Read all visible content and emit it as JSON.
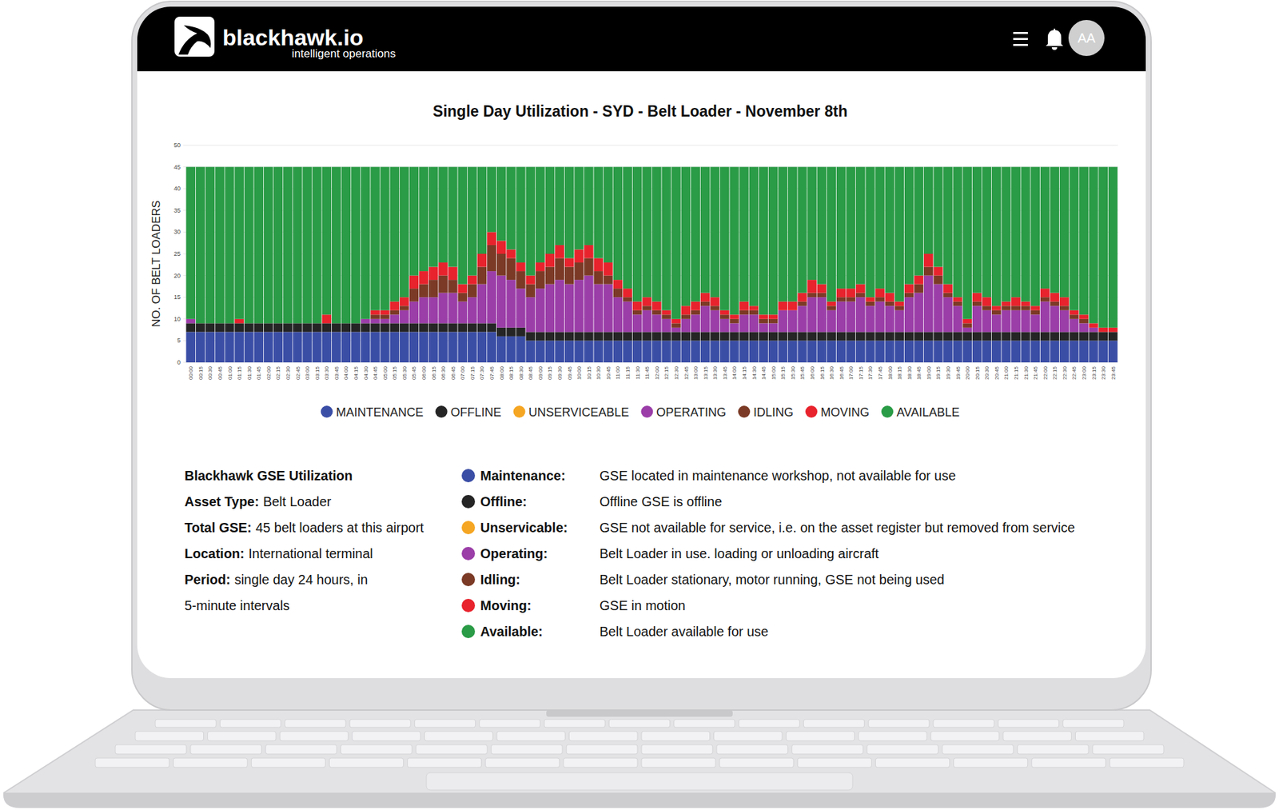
{
  "header": {
    "brand": "blackhawk.io",
    "tagline": "intelligent operations",
    "avatar": "AA"
  },
  "chart_data": {
    "type": "bar",
    "stacked": true,
    "title": "Single Day Utilization - SYD - Belt Loader - November 8th",
    "ylabel": "NO. OF BELT LOADERS",
    "categories": [
      "00:00",
      "00:15",
      "00:30",
      "00:45",
      "01:00",
      "01:15",
      "01:30",
      "01:45",
      "02:00",
      "02:15",
      "02:30",
      "02:45",
      "03:00",
      "03:15",
      "03:30",
      "03:45",
      "04:00",
      "04:15",
      "04:30",
      "04:45",
      "05:00",
      "05:15",
      "05:30",
      "05:45",
      "06:00",
      "06:15",
      "06:30",
      "06:45",
      "07:00",
      "07:15",
      "07:30",
      "07:45",
      "08:00",
      "08:15",
      "08:30",
      "08:45",
      "09:00",
      "09:15",
      "09:30",
      "09:45",
      "10:00",
      "10:15",
      "10:30",
      "10:45",
      "11:00",
      "11:15",
      "11:30",
      "11:45",
      "12:00",
      "12:15",
      "12:30",
      "12:45",
      "13:00",
      "13:15",
      "13:30",
      "13:45",
      "14:00",
      "14:15",
      "14:30",
      "14:45",
      "15:00",
      "15:15",
      "15:30",
      "15:45",
      "16:00",
      "16:15",
      "16:30",
      "16:45",
      "17:00",
      "17:15",
      "17:30",
      "17:45",
      "18:00",
      "18:15",
      "18:30",
      "18:45",
      "19:00",
      "19:15",
      "19:30",
      "19:45",
      "20:00",
      "20:15",
      "20:30",
      "20:45",
      "21:00",
      "21:15",
      "21:30",
      "21:45",
      "22:00",
      "22:15",
      "22:30",
      "22:45",
      "23:00",
      "23:15",
      "23:30",
      "23:45"
    ],
    "series": [
      {
        "name": "MAINTENANCE",
        "color": "#3b4ea6",
        "values": [
          7,
          7,
          7,
          7,
          7,
          7,
          7,
          7,
          7,
          7,
          7,
          7,
          7,
          7,
          7,
          7,
          7,
          7,
          7,
          7,
          7,
          7,
          7,
          7,
          7,
          7,
          7,
          7,
          7,
          7,
          7,
          7,
          6,
          6,
          6,
          5,
          5,
          5,
          5,
          5,
          5,
          5,
          5,
          5,
          5,
          5,
          5,
          5,
          5,
          5,
          5,
          5,
          5,
          5,
          5,
          5,
          5,
          5,
          5,
          5,
          5,
          5,
          5,
          5,
          5,
          5,
          5,
          5,
          5,
          5,
          5,
          5,
          5,
          5,
          5,
          5,
          5,
          5,
          5,
          5,
          5,
          5,
          5,
          5,
          5,
          5,
          5,
          5,
          5,
          5,
          5,
          5,
          5,
          5,
          5,
          5
        ]
      },
      {
        "name": "OFFLINE",
        "color": "#252525",
        "values": [
          2,
          2,
          2,
          2,
          2,
          2,
          2,
          2,
          2,
          2,
          2,
          2,
          2,
          2,
          2,
          2,
          2,
          2,
          2,
          2,
          2,
          2,
          2,
          2,
          2,
          2,
          2,
          2,
          2,
          2,
          2,
          2,
          2,
          2,
          2,
          2,
          2,
          2,
          2,
          2,
          2,
          2,
          2,
          2,
          2,
          2,
          2,
          2,
          2,
          2,
          2,
          2,
          2,
          2,
          2,
          2,
          2,
          2,
          2,
          2,
          2,
          2,
          2,
          2,
          2,
          2,
          2,
          2,
          2,
          2,
          2,
          2,
          2,
          2,
          2,
          2,
          2,
          2,
          2,
          2,
          2,
          2,
          2,
          2,
          2,
          2,
          2,
          2,
          2,
          2,
          2,
          2,
          2,
          2,
          2,
          2
        ]
      },
      {
        "name": "UNSERVICEABLE",
        "color": "#f5a623",
        "values": [
          0,
          0,
          0,
          0,
          0,
          0,
          0,
          0,
          0,
          0,
          0,
          0,
          0,
          0,
          0,
          0,
          0,
          0,
          0,
          0,
          0,
          0,
          0,
          0,
          0,
          0,
          0,
          0,
          0,
          0,
          0,
          0,
          0,
          0,
          0,
          0,
          0,
          0,
          0,
          0,
          0,
          0,
          0,
          0,
          0,
          0,
          0,
          0,
          0,
          0,
          0,
          0,
          0,
          0,
          0,
          0,
          0,
          0,
          0,
          0,
          0,
          0,
          0,
          0,
          0,
          0,
          0,
          0,
          0,
          0,
          0,
          0,
          0,
          0,
          0,
          0,
          0,
          0,
          0,
          0,
          0,
          0,
          0,
          0,
          0,
          0,
          0,
          0,
          0,
          0,
          0,
          0,
          0,
          0,
          0,
          0
        ]
      },
      {
        "name": "OPERATING",
        "color": "#9b3ea8",
        "values": [
          1,
          0,
          0,
          0,
          0,
          0,
          0,
          0,
          0,
          0,
          0,
          0,
          0,
          0,
          0,
          0,
          0,
          0,
          1,
          1,
          1,
          2,
          3,
          5,
          6,
          6,
          7,
          7,
          5,
          6,
          9,
          12,
          12,
          11,
          9,
          8,
          10,
          11,
          12,
          11,
          12,
          13,
          11,
          11,
          8,
          7,
          4,
          5,
          4,
          3,
          1,
          3,
          4,
          6,
          5,
          3,
          2,
          4,
          4,
          2,
          2,
          5,
          5,
          6,
          8,
          8,
          5,
          7,
          7,
          8,
          6,
          7,
          6,
          5,
          8,
          9,
          13,
          11,
          8,
          6,
          1,
          6,
          5,
          4,
          5,
          5,
          5,
          4,
          7,
          6,
          5,
          3,
          2,
          1,
          0,
          0
        ]
      },
      {
        "name": "IDLING",
        "color": "#7b3a26",
        "values": [
          0,
          0,
          0,
          0,
          0,
          0,
          0,
          0,
          0,
          0,
          0,
          0,
          0,
          0,
          0,
          0,
          0,
          0,
          0,
          1,
          1,
          1,
          1,
          3,
          3,
          4,
          4,
          3,
          2,
          3,
          4,
          6,
          5,
          5,
          4,
          3,
          4,
          4,
          5,
          4,
          4,
          4,
          3,
          2,
          2,
          1,
          1,
          1,
          1,
          1,
          1,
          1,
          1,
          1,
          1,
          1,
          1,
          1,
          1,
          1,
          1,
          0,
          0,
          1,
          1,
          1,
          1,
          1,
          1,
          1,
          1,
          1,
          1,
          1,
          1,
          2,
          2,
          2,
          1,
          1,
          1,
          1,
          1,
          1,
          1,
          1,
          1,
          1,
          1,
          1,
          1,
          1,
          1,
          0,
          0,
          0
        ]
      },
      {
        "name": "MOVING",
        "color": "#e8232d",
        "values": [
          0,
          0,
          0,
          0,
          0,
          1,
          0,
          0,
          0,
          0,
          0,
          0,
          0,
          0,
          2,
          0,
          0,
          0,
          0,
          1,
          1,
          2,
          2,
          3,
          3,
          3,
          3,
          3,
          2,
          2,
          3,
          3,
          3,
          2,
          2,
          2,
          2,
          3,
          3,
          2,
          3,
          3,
          3,
          3,
          2,
          2,
          2,
          2,
          2,
          1,
          1,
          2,
          2,
          2,
          2,
          1,
          1,
          2,
          1,
          1,
          1,
          2,
          2,
          2,
          3,
          2,
          1,
          2,
          2,
          2,
          1,
          2,
          2,
          1,
          2,
          2,
          3,
          2,
          2,
          1,
          1,
          2,
          2,
          1,
          1,
          2,
          1,
          1,
          2,
          2,
          2,
          1,
          1,
          1,
          1,
          1
        ]
      },
      {
        "name": "AVAILABLE",
        "color": "#2a9b46",
        "values": [
          35,
          36,
          36,
          36,
          36,
          35,
          36,
          36,
          36,
          36,
          36,
          36,
          36,
          36,
          34,
          36,
          36,
          36,
          35,
          33,
          33,
          31,
          30,
          25,
          24,
          23,
          22,
          23,
          27,
          25,
          20,
          15,
          17,
          19,
          22,
          25,
          22,
          20,
          18,
          21,
          19,
          18,
          21,
          22,
          26,
          28,
          31,
          30,
          31,
          33,
          35,
          32,
          31,
          29,
          30,
          33,
          34,
          31,
          32,
          34,
          34,
          31,
          31,
          29,
          26,
          27,
          31,
          28,
          28,
          27,
          30,
          28,
          29,
          31,
          27,
          25,
          20,
          23,
          27,
          30,
          35,
          29,
          30,
          32,
          31,
          30,
          31,
          32,
          28,
          29,
          30,
          33,
          34,
          36,
          37,
          37
        ]
      }
    ],
    "ylim": [
      0,
      50
    ],
    "yticks": [
      0,
      5,
      10,
      15,
      20,
      25,
      30,
      35,
      40,
      45,
      50
    ],
    "grid": true,
    "legend": "bottom"
  },
  "info": {
    "summary": [
      {
        "label": "Blackhawk GSE Utilization"
      },
      {
        "label": "Asset Type:",
        "text": "Belt Loader"
      },
      {
        "label": "Total GSE:",
        "text": "45 belt loaders at this airport"
      },
      {
        "label": "Location:",
        "text": "International terminal"
      },
      {
        "label": "Period:",
        "text": "single day 24 hours, in"
      },
      {
        "text": "5-minute intervals"
      }
    ],
    "definitions": [
      {
        "term": "Maintenance:",
        "text": "GSE located in maintenance workshop, not available for use"
      },
      {
        "term": "Offline:",
        "text": "Offline GSE is offline"
      },
      {
        "term": "Unservicable:",
        "text": "GSE not available for service, i.e. on the asset register but removed from service"
      },
      {
        "term": "Operating:",
        "text": "Belt Loader in use. loading or unloading aircraft"
      },
      {
        "term": "Idling:",
        "text": "Belt Loader stationary, motor running, GSE not being used"
      },
      {
        "term": "Moving:",
        "text": "GSE in motion"
      },
      {
        "term": "Available:",
        "text": "Belt Loader available for use"
      }
    ]
  }
}
